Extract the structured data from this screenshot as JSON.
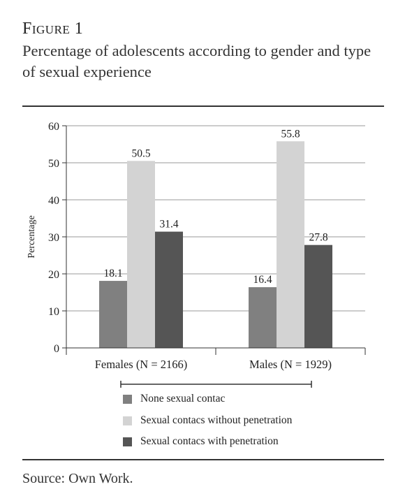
{
  "figure": {
    "label": "Figure 1",
    "title": "Percentage of adolescents according to gender and type of sexual experience",
    "source": "Source: Own Work."
  },
  "chart_data": {
    "type": "bar",
    "categories": [
      "Females (N = 2166)",
      "Males (N = 1929)"
    ],
    "series": [
      {
        "name": "None sexual contac",
        "values": [
          18.1,
          16.4
        ],
        "color": "#808080"
      },
      {
        "name": "Sexual contacs without penetration",
        "values": [
          50.5,
          55.8
        ],
        "color": "#d3d3d3"
      },
      {
        "name": "Sexual contacs with penetration",
        "values": [
          31.4,
          27.8
        ],
        "color": "#555555"
      }
    ],
    "data_labels": [
      [
        "18.1",
        "16.4"
      ],
      [
        "50.5",
        "55.8"
      ],
      [
        "31.4",
        "27.8"
      ]
    ],
    "ylabel": "Percentage",
    "xlabel": "",
    "ylim": [
      0,
      60
    ],
    "yticks": [
      0,
      10,
      20,
      30,
      40,
      50,
      60
    ],
    "grid": true,
    "legend": "bottom"
  }
}
